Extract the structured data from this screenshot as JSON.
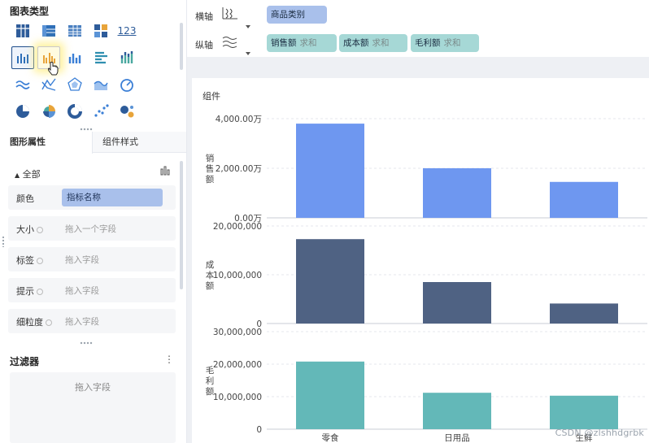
{
  "left_panel": {
    "chart_types_title": "图表类型",
    "chart_types": [
      {
        "icon": "crosstab-icon",
        "state": "normal"
      },
      {
        "icon": "grouped-table-icon",
        "state": "normal"
      },
      {
        "icon": "detail-table-icon",
        "state": "normal"
      },
      {
        "icon": "kpi-card-icon",
        "state": "normal"
      },
      {
        "icon": "number-123-icon",
        "state": "normal",
        "text": "123"
      },
      {
        "icon": "blank",
        "state": "normal"
      },
      {
        "icon": "multi-series-column-icon",
        "state": "selected"
      },
      {
        "icon": "grouped-column-icon",
        "state": "hover"
      },
      {
        "icon": "column-chart-icon",
        "state": "normal"
      },
      {
        "icon": "bar-chart-icon",
        "state": "normal"
      },
      {
        "icon": "stacked-column-icon",
        "state": "normal"
      },
      {
        "icon": "blank",
        "state": "normal"
      },
      {
        "icon": "line-chart-icon",
        "state": "normal"
      },
      {
        "icon": "multi-line-icon",
        "state": "normal"
      },
      {
        "icon": "radar-chart-icon",
        "state": "normal"
      },
      {
        "icon": "area-chart-icon",
        "state": "normal"
      },
      {
        "icon": "gauge-icon",
        "state": "normal"
      },
      {
        "icon": "blank",
        "state": "normal"
      },
      {
        "icon": "pie-chart-icon",
        "state": "normal"
      },
      {
        "icon": "rose-chart-icon",
        "state": "normal"
      },
      {
        "icon": "donut-chart-icon",
        "state": "normal"
      },
      {
        "icon": "scatter-chart-icon",
        "state": "normal"
      },
      {
        "icon": "bubble-chart-icon",
        "state": "normal"
      },
      {
        "icon": "blank",
        "state": "normal"
      }
    ],
    "tabs": [
      {
        "label": "图形属性",
        "active": true
      },
      {
        "label": "组件样式",
        "active": false
      }
    ],
    "props": {
      "group_label": "全部",
      "rows": [
        {
          "label": "颜色",
          "value": "指标名称",
          "filled": true
        },
        {
          "label": "大小",
          "value": "拖入一个字段",
          "filled": false
        },
        {
          "label": "标签",
          "value": "拖入字段",
          "filled": false
        },
        {
          "label": "提示",
          "value": "拖入字段",
          "filled": false
        },
        {
          "label": "细粒度",
          "value": "拖入字段",
          "filled": false
        }
      ]
    },
    "filter": {
      "title": "过滤器",
      "more": "⋮",
      "placeholder": "拖入字段"
    }
  },
  "axes": {
    "x_label": "横轴",
    "y_label": "纵轴",
    "x_fields": [
      {
        "name": "商品类别",
        "agg": ""
      }
    ],
    "y_fields": [
      {
        "name": "销售额",
        "agg": "求和"
      },
      {
        "name": "成本额",
        "agg": "求和"
      },
      {
        "name": "毛利额",
        "agg": "求和"
      }
    ]
  },
  "component": {
    "title": "组件"
  },
  "colors": {
    "sales": "#6e97f0",
    "cost": "#4f6283",
    "profit": "#63b8b8",
    "x_field_pill": "#a9c0eb",
    "y_field_pill": "#a6d8d6"
  },
  "chart_data": {
    "type": "bar",
    "categories": [
      "零食",
      "日用品",
      "生鲜"
    ],
    "series": [
      {
        "name": "销售额",
        "ylabel": "销售额",
        "values": [
          38000000,
          20000000,
          14500000
        ],
        "ylim": [
          0,
          40000000
        ],
        "ticks": [
          "0.00万",
          "2,000.00万",
          "4,000.00万"
        ],
        "tick_values": [
          0,
          20000000,
          40000000
        ]
      },
      {
        "name": "成本额",
        "ylabel": "成本额",
        "values": [
          17300000,
          8500000,
          4100000
        ],
        "ylim": [
          0,
          20000000
        ],
        "ticks": [
          "0",
          "10,000,000",
          "20,000,000"
        ],
        "tick_values": [
          0,
          10000000,
          20000000
        ]
      },
      {
        "name": "毛利额",
        "ylabel": "毛利额",
        "values": [
          20800000,
          11200000,
          10300000
        ],
        "ylim": [
          0,
          30000000
        ],
        "ticks": [
          "0",
          "10,000,000",
          "20,000,000",
          "30,000,000"
        ],
        "tick_values": [
          0,
          10000000,
          20000000,
          30000000
        ]
      }
    ],
    "grid": true,
    "legend": "none"
  },
  "watermark": "CSDN @zlshhdgrbk"
}
